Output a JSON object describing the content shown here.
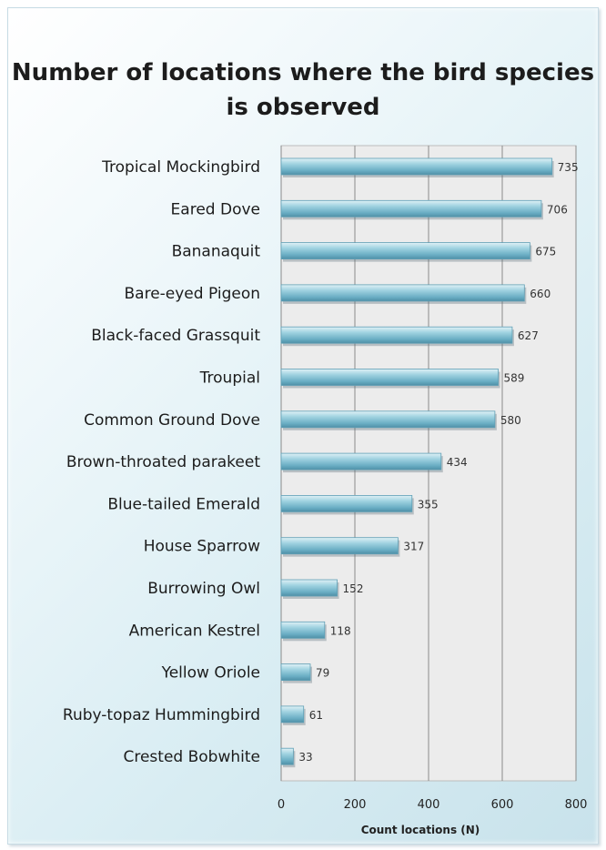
{
  "chart_data": {
    "type": "bar",
    "orientation": "horizontal",
    "title": "Number of locations where the bird species is observed",
    "xlabel": "Count locations (N)",
    "ylabel": "",
    "categories": [
      "Tropical Mockingbird",
      "Eared Dove",
      "Bananaquit",
      "Bare-eyed Pigeon",
      "Black-faced Grassquit",
      "Troupial",
      "Common Ground Dove",
      "Brown-throated parakeet",
      "Blue-tailed Emerald",
      "House Sparrow",
      "Burrowing Owl",
      "American Kestrel",
      "Yellow Oriole",
      "Ruby-topaz Hummingbird",
      "Crested Bobwhite"
    ],
    "values": [
      735,
      706,
      675,
      660,
      627,
      589,
      580,
      434,
      355,
      317,
      152,
      118,
      79,
      61,
      33
    ],
    "xlim": [
      0,
      800
    ],
    "xticks": [
      "0",
      "200",
      "400",
      "600",
      "800"
    ],
    "grid": "vertical",
    "data_labels": true,
    "colors": {
      "bar": "#8fc8d8",
      "bar_dark": "#4f97b0",
      "plot_bg": "#eeeeee",
      "grid": "#888888"
    }
  }
}
